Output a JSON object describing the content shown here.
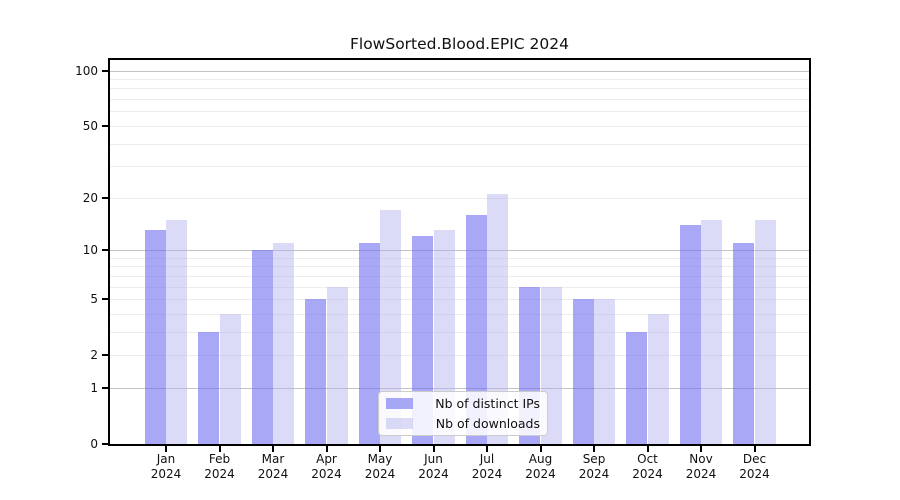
{
  "title": "FlowSorted.Blood.EPIC 2024",
  "legend": {
    "items": [
      {
        "label": "Nb of distinct IPs",
        "color": "rgba(110,110,240,0.60)"
      },
      {
        "label": "Nb of downloads",
        "color": "rgba(175,175,240,0.45)"
      }
    ]
  },
  "y_axis": {
    "tick_labels": [
      "0",
      "1",
      "2",
      "5",
      "10",
      "20",
      "50",
      "100"
    ]
  },
  "x_axis": {
    "months": [
      "Jan",
      "Feb",
      "Mar",
      "Apr",
      "May",
      "Jun",
      "Jul",
      "Aug",
      "Sep",
      "Oct",
      "Nov",
      "Dec"
    ],
    "year": "2024"
  },
  "chart_data": {
    "type": "bar",
    "title": "FlowSorted.Blood.EPIC 2024",
    "categories": [
      "Jan 2024",
      "Feb 2024",
      "Mar 2024",
      "Apr 2024",
      "May 2024",
      "Jun 2024",
      "Jul 2024",
      "Aug 2024",
      "Sep 2024",
      "Oct 2024",
      "Nov 2024",
      "Dec 2024"
    ],
    "series": [
      {
        "name": "Nb of distinct IPs",
        "color": "rgba(110,110,240,0.60)",
        "values": [
          13,
          3,
          10,
          5,
          11,
          12,
          16,
          6,
          5,
          3,
          14,
          11
        ]
      },
      {
        "name": "Nb of downloads",
        "color": "rgba(175,175,240,0.45)",
        "values": [
          15,
          4,
          11,
          6,
          17,
          13,
          21,
          6,
          5,
          4,
          15,
          15
        ]
      }
    ],
    "xlabel": "",
    "ylabel": "",
    "yscale": "log1p",
    "ylim": [
      0,
      115
    ],
    "y_ticks": [
      0,
      1,
      2,
      5,
      10,
      20,
      50,
      100
    ],
    "y_major_gridlines": [
      1,
      10,
      100
    ],
    "y_minor_gridlines": [
      2,
      3,
      4,
      5,
      6,
      7,
      8,
      9,
      20,
      30,
      40,
      50,
      60,
      70,
      80,
      90
    ],
    "grid": "horizontal",
    "legend_position": "lower center"
  }
}
